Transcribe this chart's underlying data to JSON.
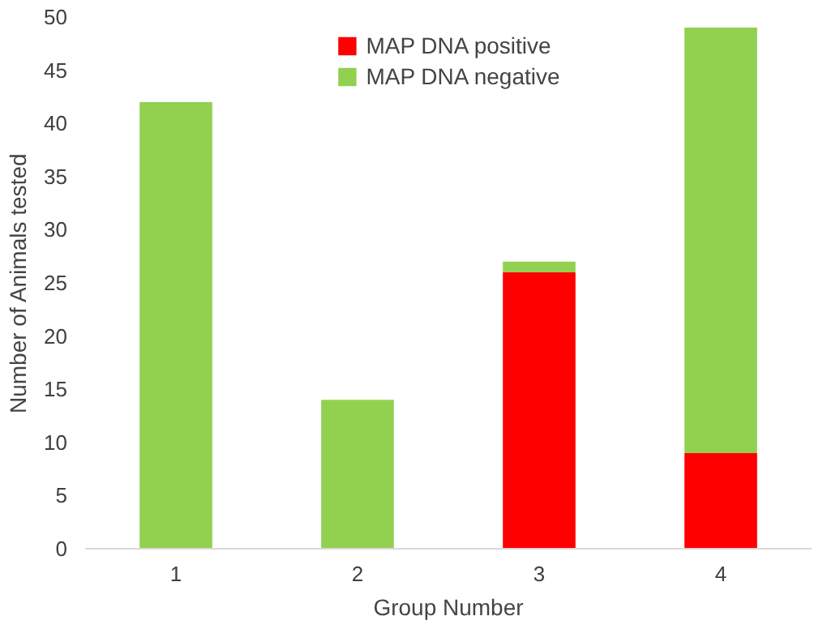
{
  "chart_data": {
    "type": "bar",
    "stacked": true,
    "xlabel": "Group Number",
    "ylabel": "Number of Animals tested",
    "categories": [
      "1",
      "2",
      "3",
      "4"
    ],
    "series": [
      {
        "name": "MAP DNA positive",
        "color": "#ff0000",
        "values": [
          0,
          0,
          26,
          9
        ]
      },
      {
        "name": "MAP DNA negative",
        "color": "#92d050",
        "values": [
          42,
          14,
          1,
          40
        ]
      }
    ],
    "ylim": [
      0,
      50
    ],
    "yticks": [
      0,
      5,
      10,
      15,
      20,
      25,
      30,
      35,
      40,
      45,
      50
    ],
    "grid": false,
    "legend": "top"
  }
}
